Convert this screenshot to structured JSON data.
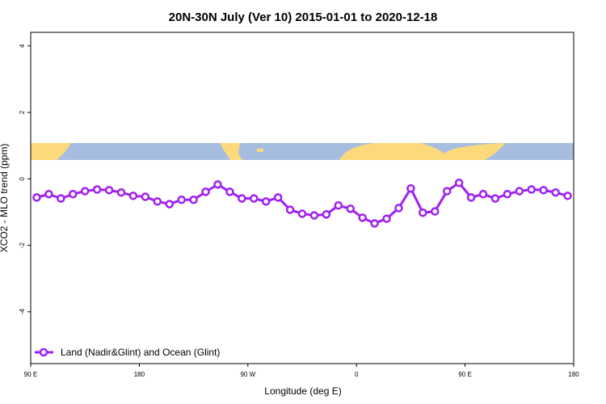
{
  "chart_data": {
    "type": "line",
    "title": "20N-30N July (Ver 10)   2015-01-01 to 2020-12-18",
    "x_label": "Longitude (deg E)",
    "y_label": "XCO2 - MLO trend (ppm)",
    "x": [
      95,
      105,
      115,
      125,
      135,
      145,
      155,
      165,
      175,
      185,
      195,
      205,
      215,
      225,
      235,
      245,
      255,
      265,
      275,
      285,
      295,
      305,
      315,
      325,
      335,
      345,
      355,
      365,
      375,
      385,
      395,
      405,
      415,
      425,
      435,
      445,
      455,
      465,
      475,
      485,
      495,
      505,
      515,
      525,
      535
    ],
    "series": [
      {
        "name": "Land (Nadir&Glint) and Ocean (Glint)",
        "color": "#a020f0",
        "values": [
          -0.56,
          -0.46,
          -0.59,
          -0.46,
          -0.37,
          -0.32,
          -0.34,
          -0.41,
          -0.51,
          -0.54,
          -0.68,
          -0.76,
          -0.63,
          -0.63,
          -0.39,
          -0.17,
          -0.39,
          -0.59,
          -0.59,
          -0.68,
          -0.56,
          -0.93,
          -1.05,
          -1.1,
          -1.07,
          -0.8,
          -0.9,
          -1.17,
          -1.34,
          -1.2,
          -0.88,
          -0.29,
          -1.02,
          -0.98,
          -0.37,
          -0.12,
          -0.56,
          -0.46,
          -0.59,
          -0.46,
          -0.37,
          -0.32,
          -0.34,
          -0.41,
          -0.51
        ]
      }
    ],
    "xlim": [
      90,
      540
    ],
    "xticks": [
      {
        "value": 90,
        "label": "90 E"
      },
      180,
      {
        "value": 270,
        "label": "90 W"
      },
      {
        "value": 360,
        "label": "0"
      },
      {
        "value": 450,
        "label": "90 E"
      },
      {
        "value": 540,
        "label": "180"
      }
    ],
    "ylim": [
      -5.56,
      4.41
    ],
    "yticks": [
      -4,
      -2,
      0,
      2,
      4
    ],
    "legend": "bottom-left"
  }
}
